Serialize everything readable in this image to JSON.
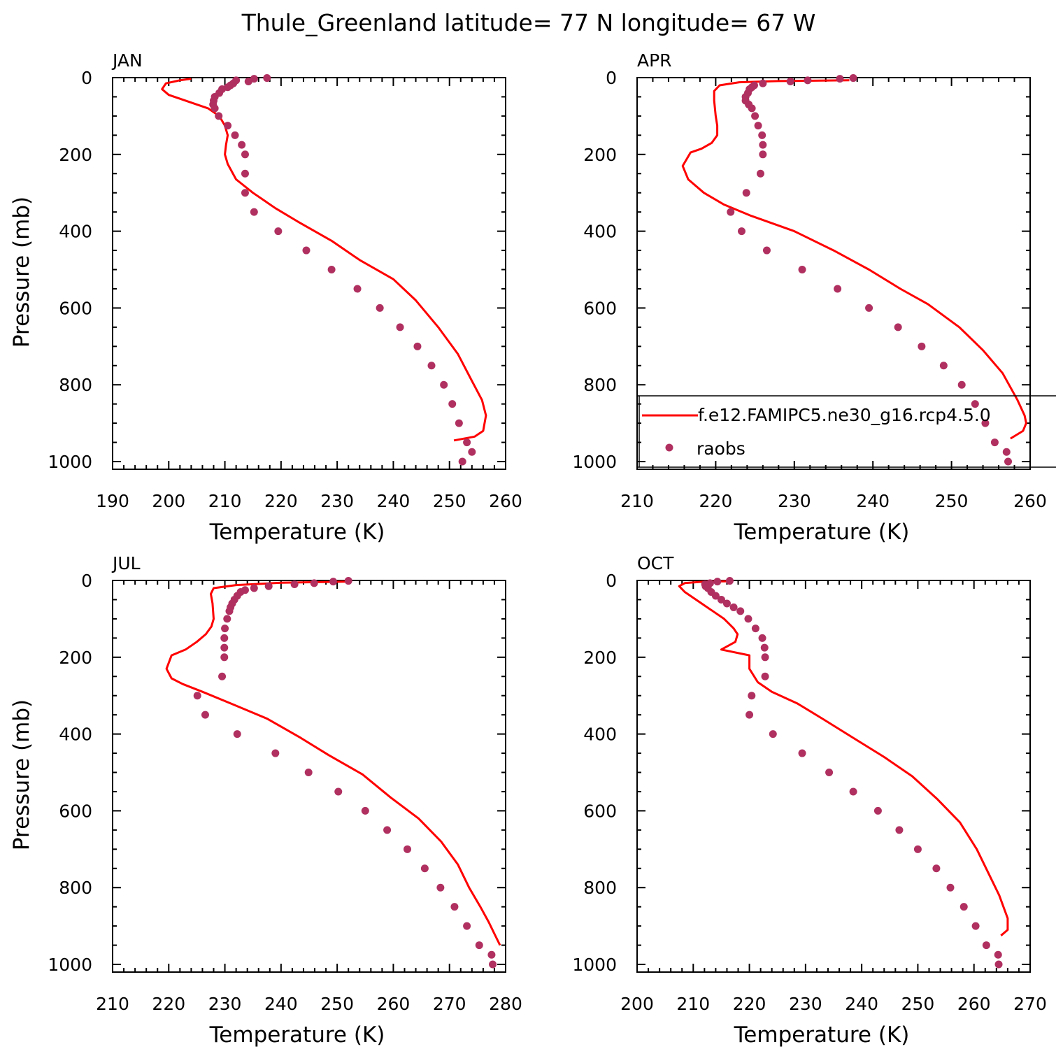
{
  "title": "Thule_Greenland  latitude= 77 N longitude= 67 W",
  "colors": {
    "model": "#ff0000",
    "obs": "#b03060",
    "axis": "#000000"
  },
  "legend": {
    "model_label": "f.e12.FAMIPC5.ne30_g16.rcp4.5.0",
    "obs_label": "raobs",
    "placement": "lower-right of APR panel"
  },
  "chart_data": [
    {
      "type": "scatter",
      "panel": "JAN",
      "xlabel": "Temperature (K)",
      "ylabel": "Pressure (mb)",
      "xlim": [
        190,
        260
      ],
      "ylim": [
        1020,
        0
      ],
      "xticks": [
        190,
        200,
        210,
        220,
        230,
        240,
        250,
        260
      ],
      "yticks": [
        0,
        200,
        400,
        600,
        800,
        1000
      ],
      "series": [
        {
          "name": "f.e12.FAMIPC5.ne30_g16.rcp4.5.0",
          "kind": "line",
          "x": [
            204.0,
            202.0,
            199.5,
            198.8,
            200.0,
            203.0,
            207.0,
            209.0,
            210.0,
            210.5,
            210.2,
            210.0,
            210.5,
            212.0,
            215.0,
            219.0,
            223.0,
            229.0,
            234.0,
            240.0,
            244.0,
            248.0,
            251.5,
            254.0,
            255.8,
            256.5,
            256.0,
            254.5,
            250.8
          ],
          "y": [
            3,
            7,
            15,
            30,
            45,
            60,
            80,
            100,
            125,
            150,
            175,
            200,
            225,
            265,
            300,
            340,
            375,
            425,
            475,
            525,
            580,
            650,
            720,
            790,
            840,
            880,
            920,
            935,
            945
          ]
        },
        {
          "name": "raobs",
          "kind": "scatter",
          "x": [
            217.5,
            215.2,
            212.0,
            214.2,
            211.5,
            211.0,
            210.5,
            209.5,
            209.0,
            208.2,
            208.0,
            207.9,
            208.2,
            208.9,
            210.5,
            211.8,
            213.0,
            213.6,
            213.6,
            213.6,
            215.2,
            219.5,
            224.5,
            229.0,
            233.6,
            237.6,
            241.2,
            244.3,
            246.8,
            249.0,
            250.5,
            251.7,
            253.1,
            254.0,
            252.3
          ],
          "y": [
            1,
            3,
            7,
            10,
            15,
            20,
            25,
            30,
            40,
            50,
            60,
            70,
            80,
            100,
            125,
            150,
            175,
            200,
            250,
            300,
            350,
            400,
            450,
            500,
            550,
            600,
            650,
            700,
            750,
            800,
            850,
            900,
            950,
            975,
            1000
          ]
        }
      ]
    },
    {
      "type": "scatter",
      "panel": "APR",
      "xlabel": "Temperature (K)",
      "ylabel": "",
      "xlim": [
        210,
        260
      ],
      "ylim": [
        1020,
        0
      ],
      "xticks": [
        210,
        220,
        230,
        240,
        250,
        260
      ],
      "yticks": [
        0,
        200,
        400,
        600,
        800,
        1000
      ],
      "series": [
        {
          "name": "f.e12.FAMIPC5.ne30_g16.rcp4.5.0",
          "kind": "line",
          "x": [
            237.0,
            228.0,
            223.0,
            220.5,
            219.8,
            219.8,
            220.0,
            220.2,
            220.2,
            219.5,
            218.2,
            216.8,
            215.8,
            216.5,
            218.5,
            221.0,
            224.5,
            230.0,
            235.0,
            239.5,
            243.5,
            247.0,
            251.0,
            254.0,
            256.5,
            258.4,
            259.3,
            259.5,
            259.1,
            257.5
          ],
          "y": [
            7,
            9,
            12,
            20,
            35,
            60,
            100,
            125,
            150,
            170,
            185,
            195,
            230,
            265,
            300,
            330,
            360,
            400,
            450,
            500,
            550,
            590,
            650,
            710,
            770,
            840,
            880,
            900,
            920,
            940
          ]
        },
        {
          "name": "raobs",
          "kind": "scatter",
          "x": [
            237.5,
            235.8,
            231.7,
            229.5,
            226.0,
            224.9,
            224.6,
            224.3,
            224.1,
            223.8,
            223.8,
            224.2,
            224.6,
            225.0,
            225.4,
            225.9,
            226.0,
            226.0,
            225.7,
            223.9,
            221.9,
            223.3,
            226.5,
            231.0,
            235.5,
            239.5,
            243.2,
            246.2,
            249.0,
            251.3,
            253.0,
            254.3,
            255.5,
            257.0,
            257.2
          ],
          "y": [
            1,
            3,
            7,
            10,
            15,
            20,
            25,
            30,
            40,
            50,
            60,
            70,
            80,
            100,
            125,
            150,
            175,
            200,
            250,
            300,
            350,
            400,
            450,
            500,
            550,
            600,
            650,
            700,
            750,
            800,
            850,
            900,
            950,
            975,
            1000
          ]
        }
      ]
    },
    {
      "type": "scatter",
      "panel": "JUL",
      "xlabel": "Temperature (K)",
      "ylabel": "Pressure (mb)",
      "xlim": [
        210,
        280
      ],
      "ylim": [
        1020,
        0
      ],
      "xticks": [
        210,
        220,
        230,
        240,
        250,
        260,
        270,
        280
      ],
      "yticks": [
        0,
        200,
        400,
        600,
        800,
        1000
      ],
      "series": [
        {
          "name": "f.e12.FAMIPC5.ne30_g16.rcp4.5.0",
          "kind": "line",
          "x": [
            252.0,
            240.0,
            232.0,
            228.0,
            227.5,
            227.8,
            228.0,
            227.6,
            226.6,
            225.0,
            223.0,
            220.5,
            219.6,
            220.5,
            222.5,
            226.0,
            231.0,
            237.5,
            243.5,
            248.5,
            254.5,
            259.5,
            264.5,
            268.5,
            271.5,
            273.5,
            275.5,
            277.0,
            278.0,
            279.0
          ],
          "y": [
            3,
            6,
            12,
            20,
            35,
            60,
            100,
            120,
            140,
            160,
            180,
            195,
            230,
            255,
            270,
            290,
            320,
            360,
            410,
            455,
            505,
            565,
            620,
            680,
            740,
            800,
            850,
            890,
            920,
            950
          ]
        },
        {
          "name": "raobs",
          "kind": "scatter",
          "x": [
            252.0,
            249.3,
            245.9,
            242.4,
            237.8,
            235.2,
            233.6,
            232.8,
            232.2,
            231.7,
            231.3,
            231.0,
            230.8,
            230.4,
            230.0,
            229.9,
            229.9,
            229.9,
            229.5,
            225.1,
            226.5,
            232.2,
            239.0,
            244.9,
            250.2,
            255.0,
            258.9,
            262.5,
            265.6,
            268.4,
            270.9,
            273.1,
            275.3,
            277.5,
            277.7
          ],
          "y": [
            1,
            3,
            7,
            10,
            15,
            20,
            25,
            30,
            40,
            50,
            60,
            70,
            80,
            100,
            125,
            150,
            175,
            200,
            250,
            300,
            350,
            400,
            450,
            500,
            550,
            600,
            650,
            700,
            750,
            800,
            850,
            900,
            950,
            975,
            1000
          ]
        }
      ]
    },
    {
      "type": "scatter",
      "panel": "OCT",
      "xlabel": "Temperature (K)",
      "ylabel": "",
      "xlim": [
        200,
        270
      ],
      "ylim": [
        1020,
        0
      ],
      "xticks": [
        200,
        210,
        220,
        230,
        240,
        250,
        260,
        270
      ],
      "yticks": [
        0,
        200,
        400,
        600,
        800,
        1000
      ],
      "series": [
        {
          "name": "f.e12.FAMIPC5.ne30_g16.rcp4.5.0",
          "kind": "line",
          "x": [
            216.5,
            212.0,
            208.5,
            207.5,
            208.5,
            210.5,
            213.0,
            215.5,
            217.2,
            217.9,
            217.5,
            215.0,
            220.0,
            220.0,
            220.0,
            221.5,
            224.0,
            228.5,
            233.0,
            238.5,
            244.0,
            249.0,
            253.5,
            257.5,
            260.5,
            262.5,
            264.5,
            266.0,
            266.0,
            264.8
          ],
          "y": [
            2,
            3,
            7,
            15,
            30,
            50,
            75,
            100,
            125,
            140,
            160,
            180,
            195,
            220,
            230,
            265,
            290,
            320,
            360,
            410,
            460,
            510,
            570,
            630,
            700,
            760,
            820,
            880,
            910,
            925
          ]
        },
        {
          "name": "raobs",
          "kind": "scatter",
          "x": [
            216.5,
            214.3,
            213.0,
            212.1,
            212.2,
            212.6,
            213.2,
            214.0,
            215.0,
            216.0,
            217.2,
            218.4,
            219.8,
            221.1,
            222.3,
            222.7,
            222.8,
            222.8,
            220.4,
            220.0,
            224.2,
            229.4,
            234.2,
            238.5,
            242.9,
            246.7,
            250.0,
            253.3,
            255.8,
            258.2,
            260.3,
            262.2,
            264.3,
            264.4
          ],
          "y": [
            1,
            3,
            7,
            10,
            15,
            20,
            30,
            40,
            50,
            60,
            70,
            80,
            100,
            125,
            150,
            175,
            200,
            250,
            300,
            350,
            400,
            450,
            500,
            550,
            600,
            650,
            700,
            750,
            800,
            850,
            900,
            950,
            975,
            1000
          ]
        }
      ]
    }
  ]
}
